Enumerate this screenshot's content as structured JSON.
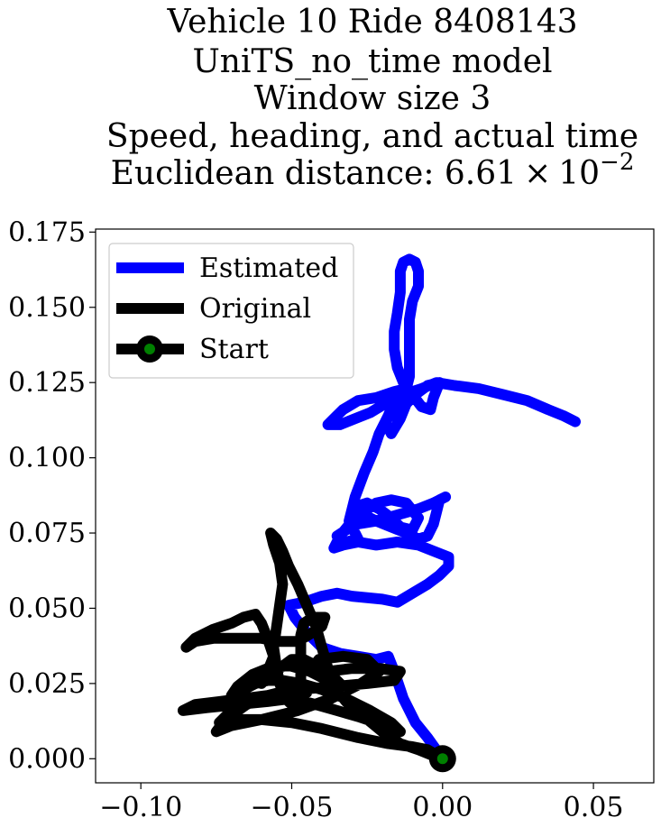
{
  "chart_data": {
    "type": "line",
    "title_lines": [
      "Vehicle 10 Ride 8408143",
      "UniTS_no_time model",
      "Window size 3",
      "Speed, heading, and actual time"
    ],
    "title_distance_prefix": "Euclidean distance: 6.61",
    "title_distance_times": "×",
    "title_distance_base": "10",
    "title_distance_exponent": "−2",
    "xlabel": "",
    "ylabel": "",
    "xlim": [
      -0.115,
      0.07
    ],
    "ylim": [
      -0.008,
      0.176
    ],
    "x_ticks": [
      -0.1,
      -0.05,
      0.0,
      0.05
    ],
    "x_tick_labels": [
      "−0.10",
      "−0.05",
      "0.00",
      "0.05"
    ],
    "y_ticks": [
      0.0,
      0.025,
      0.05,
      0.075,
      0.1,
      0.125,
      0.15,
      0.175
    ],
    "y_tick_labels": [
      "0.000",
      "0.025",
      "0.050",
      "0.075",
      "0.100",
      "0.125",
      "0.150",
      "0.175"
    ],
    "grid": false,
    "legend_position": "top-left",
    "series": [
      {
        "name": "Estimated",
        "color": "#0000ff",
        "points": [
          [
            0.0,
            0.0
          ],
          [
            -0.005,
            0.007
          ],
          [
            -0.009,
            0.012
          ],
          [
            -0.013,
            0.02
          ],
          [
            -0.016,
            0.029
          ],
          [
            -0.018,
            0.034
          ],
          [
            -0.022,
            0.033
          ],
          [
            -0.028,
            0.034
          ],
          [
            -0.034,
            0.035
          ],
          [
            -0.04,
            0.037
          ],
          [
            -0.045,
            0.042
          ],
          [
            -0.049,
            0.047
          ],
          [
            -0.051,
            0.051
          ],
          [
            -0.046,
            0.052
          ],
          [
            -0.04,
            0.054
          ],
          [
            -0.035,
            0.055
          ],
          [
            -0.03,
            0.054
          ],
          [
            -0.02,
            0.053
          ],
          [
            -0.015,
            0.052
          ],
          [
            -0.01,
            0.055
          ],
          [
            -0.005,
            0.058
          ],
          [
            -0.001,
            0.061
          ],
          [
            0.002,
            0.064
          ],
          [
            0.002,
            0.067
          ],
          [
            -0.003,
            0.069
          ],
          [
            -0.008,
            0.071
          ],
          [
            -0.015,
            0.072
          ],
          [
            -0.022,
            0.071
          ],
          [
            -0.028,
            0.072
          ],
          [
            -0.033,
            0.071
          ],
          [
            -0.036,
            0.07
          ],
          [
            -0.034,
            0.074
          ],
          [
            -0.03,
            0.079
          ],
          [
            -0.026,
            0.082
          ],
          [
            -0.022,
            0.085
          ],
          [
            -0.017,
            0.086
          ],
          [
            -0.012,
            0.085
          ],
          [
            -0.008,
            0.08
          ],
          [
            -0.01,
            0.076
          ],
          [
            -0.014,
            0.077
          ],
          [
            -0.017,
            0.08
          ],
          [
            -0.021,
            0.083
          ],
          [
            -0.025,
            0.085
          ],
          [
            -0.028,
            0.084
          ],
          [
            -0.026,
            0.081
          ],
          [
            -0.022,
            0.079
          ],
          [
            -0.017,
            0.077
          ],
          [
            -0.012,
            0.075
          ],
          [
            -0.008,
            0.073
          ],
          [
            -0.005,
            0.074
          ],
          [
            -0.003,
            0.078
          ],
          [
            -0.002,
            0.082
          ],
          [
            -0.001,
            0.086
          ],
          [
            0.001,
            0.087
          ],
          [
            -0.003,
            0.085
          ],
          [
            -0.008,
            0.083
          ],
          [
            -0.015,
            0.081
          ],
          [
            -0.022,
            0.079
          ],
          [
            -0.028,
            0.078
          ],
          [
            -0.032,
            0.076
          ],
          [
            -0.035,
            0.074
          ],
          [
            -0.032,
            0.072
          ],
          [
            -0.028,
            0.073
          ],
          [
            -0.031,
            0.079
          ],
          [
            -0.029,
            0.087
          ],
          [
            -0.026,
            0.095
          ],
          [
            -0.023,
            0.102
          ],
          [
            -0.021,
            0.108
          ],
          [
            -0.018,
            0.114
          ],
          [
            -0.016,
            0.119
          ],
          [
            -0.014,
            0.122
          ],
          [
            -0.013,
            0.12
          ],
          [
            -0.016,
            0.116
          ],
          [
            -0.019,
            0.112
          ],
          [
            -0.017,
            0.108
          ],
          [
            -0.014,
            0.113
          ],
          [
            -0.012,
            0.118
          ],
          [
            -0.009,
            0.121
          ],
          [
            -0.005,
            0.124
          ],
          [
            -0.001,
            0.125
          ],
          [
            -0.003,
            0.12
          ],
          [
            -0.004,
            0.116
          ],
          [
            -0.007,
            0.117
          ],
          [
            -0.01,
            0.121
          ],
          [
            -0.013,
            0.125
          ],
          [
            -0.015,
            0.13
          ],
          [
            -0.016,
            0.136
          ],
          [
            -0.016,
            0.142
          ],
          [
            -0.015,
            0.148
          ],
          [
            -0.014,
            0.155
          ],
          [
            -0.014,
            0.162
          ],
          [
            -0.013,
            0.165
          ],
          [
            -0.011,
            0.166
          ],
          [
            -0.009,
            0.165
          ],
          [
            -0.008,
            0.162
          ],
          [
            -0.008,
            0.157
          ],
          [
            -0.01,
            0.152
          ],
          [
            -0.011,
            0.146
          ],
          [
            -0.011,
            0.14
          ],
          [
            -0.011,
            0.133
          ],
          [
            -0.011,
            0.127
          ],
          [
            -0.012,
            0.123
          ],
          [
            -0.016,
            0.122
          ],
          [
            -0.022,
            0.12
          ],
          [
            -0.028,
            0.119
          ],
          [
            -0.033,
            0.116
          ],
          [
            -0.036,
            0.113
          ],
          [
            -0.038,
            0.111
          ],
          [
            -0.034,
            0.111
          ],
          [
            -0.029,
            0.113
          ],
          [
            -0.024,
            0.115
          ],
          [
            -0.019,
            0.118
          ],
          [
            -0.013,
            0.121
          ],
          [
            -0.007,
            0.123
          ],
          [
            -0.002,
            0.125
          ],
          [
            0.004,
            0.124
          ],
          [
            0.012,
            0.123
          ],
          [
            0.02,
            0.121
          ],
          [
            0.028,
            0.119
          ],
          [
            0.035,
            0.116
          ],
          [
            0.04,
            0.114
          ],
          [
            0.044,
            0.112
          ]
        ]
      },
      {
        "name": "Original",
        "color": "#000000",
        "points": [
          [
            0.0,
            0.0
          ],
          [
            -0.005,
            0.003
          ],
          [
            -0.01,
            0.004
          ],
          [
            -0.018,
            0.005
          ],
          [
            -0.028,
            0.007
          ],
          [
            -0.04,
            0.01
          ],
          [
            -0.05,
            0.012
          ],
          [
            -0.06,
            0.013
          ],
          [
            -0.068,
            0.013
          ],
          [
            -0.074,
            0.012
          ],
          [
            -0.07,
            0.016
          ],
          [
            -0.06,
            0.02
          ],
          [
            -0.048,
            0.023
          ],
          [
            -0.036,
            0.024
          ],
          [
            -0.025,
            0.025
          ],
          [
            -0.016,
            0.026
          ],
          [
            -0.014,
            0.029
          ],
          [
            -0.021,
            0.03
          ],
          [
            -0.03,
            0.03
          ],
          [
            -0.038,
            0.029
          ],
          [
            -0.044,
            0.029
          ],
          [
            -0.041,
            0.033
          ],
          [
            -0.033,
            0.034
          ],
          [
            -0.025,
            0.033
          ],
          [
            -0.021,
            0.029
          ],
          [
            -0.027,
            0.025
          ],
          [
            -0.037,
            0.02
          ],
          [
            -0.048,
            0.016
          ],
          [
            -0.06,
            0.013
          ],
          [
            -0.07,
            0.011
          ],
          [
            -0.075,
            0.009
          ],
          [
            -0.072,
            0.013
          ],
          [
            -0.065,
            0.018
          ],
          [
            -0.058,
            0.021
          ],
          [
            -0.05,
            0.023
          ],
          [
            -0.045,
            0.022
          ],
          [
            -0.05,
            0.02
          ],
          [
            -0.058,
            0.019
          ],
          [
            -0.068,
            0.018
          ],
          [
            -0.078,
            0.017
          ],
          [
            -0.086,
            0.016
          ],
          [
            -0.082,
            0.018
          ],
          [
            -0.074,
            0.019
          ],
          [
            -0.066,
            0.02
          ],
          [
            -0.058,
            0.021
          ],
          [
            -0.05,
            0.02
          ],
          [
            -0.042,
            0.018
          ],
          [
            -0.035,
            0.016
          ],
          [
            -0.028,
            0.014
          ],
          [
            -0.022,
            0.012
          ],
          [
            -0.017,
            0.01
          ],
          [
            -0.014,
            0.009
          ],
          [
            -0.017,
            0.012
          ],
          [
            -0.024,
            0.016
          ],
          [
            -0.032,
            0.02
          ],
          [
            -0.04,
            0.023
          ],
          [
            -0.047,
            0.025
          ],
          [
            -0.053,
            0.026
          ],
          [
            -0.058,
            0.026
          ],
          [
            -0.062,
            0.025
          ],
          [
            -0.066,
            0.023
          ],
          [
            -0.07,
            0.021
          ],
          [
            -0.068,
            0.024
          ],
          [
            -0.063,
            0.028
          ],
          [
            -0.058,
            0.03
          ],
          [
            -0.051,
            0.031
          ],
          [
            -0.044,
            0.029
          ],
          [
            -0.038,
            0.026
          ],
          [
            -0.034,
            0.025
          ],
          [
            -0.037,
            0.028
          ],
          [
            -0.042,
            0.031
          ],
          [
            -0.046,
            0.033
          ],
          [
            -0.05,
            0.033
          ],
          [
            -0.054,
            0.03
          ],
          [
            -0.058,
            0.027
          ],
          [
            -0.06,
            0.025
          ],
          [
            -0.058,
            0.029
          ],
          [
            -0.056,
            0.034
          ],
          [
            -0.058,
            0.04
          ],
          [
            -0.06,
            0.045
          ],
          [
            -0.062,
            0.048
          ],
          [
            -0.066,
            0.047
          ],
          [
            -0.07,
            0.045
          ],
          [
            -0.076,
            0.043
          ],
          [
            -0.082,
            0.04
          ],
          [
            -0.085,
            0.037
          ],
          [
            -0.082,
            0.039
          ],
          [
            -0.076,
            0.04
          ],
          [
            -0.068,
            0.04
          ],
          [
            -0.06,
            0.04
          ],
          [
            -0.054,
            0.039
          ],
          [
            -0.048,
            0.039
          ],
          [
            -0.043,
            0.042
          ],
          [
            -0.04,
            0.044
          ],
          [
            -0.039,
            0.047
          ],
          [
            -0.043,
            0.047
          ],
          [
            -0.046,
            0.045
          ],
          [
            -0.047,
            0.041
          ],
          [
            -0.047,
            0.036
          ],
          [
            -0.047,
            0.031
          ],
          [
            -0.047,
            0.026
          ],
          [
            -0.048,
            0.021
          ],
          [
            -0.05,
            0.018
          ],
          [
            -0.052,
            0.02
          ],
          [
            -0.054,
            0.025
          ],
          [
            -0.055,
            0.03
          ],
          [
            -0.056,
            0.037
          ],
          [
            -0.055,
            0.044
          ],
          [
            -0.054,
            0.051
          ],
          [
            -0.053,
            0.058
          ],
          [
            -0.054,
            0.065
          ],
          [
            -0.056,
            0.071
          ],
          [
            -0.057,
            0.075
          ],
          [
            -0.055,
            0.073
          ],
          [
            -0.053,
            0.069
          ],
          [
            -0.051,
            0.064
          ],
          [
            -0.048,
            0.058
          ],
          [
            -0.045,
            0.051
          ],
          [
            -0.042,
            0.044
          ],
          [
            -0.04,
            0.037
          ],
          [
            -0.038,
            0.03
          ],
          [
            -0.036,
            0.024
          ],
          [
            -0.032,
            0.019
          ],
          [
            -0.026,
            0.014
          ],
          [
            -0.02,
            0.009
          ],
          [
            -0.014,
            0.005
          ],
          [
            -0.008,
            0.003
          ],
          [
            -0.003,
            0.001
          ],
          [
            0.0,
            0.0
          ]
        ]
      }
    ],
    "start_marker": {
      "label": "Start",
      "x": 0.0,
      "y": 0.0,
      "fill": "#008000",
      "edge": "#000000"
    }
  }
}
